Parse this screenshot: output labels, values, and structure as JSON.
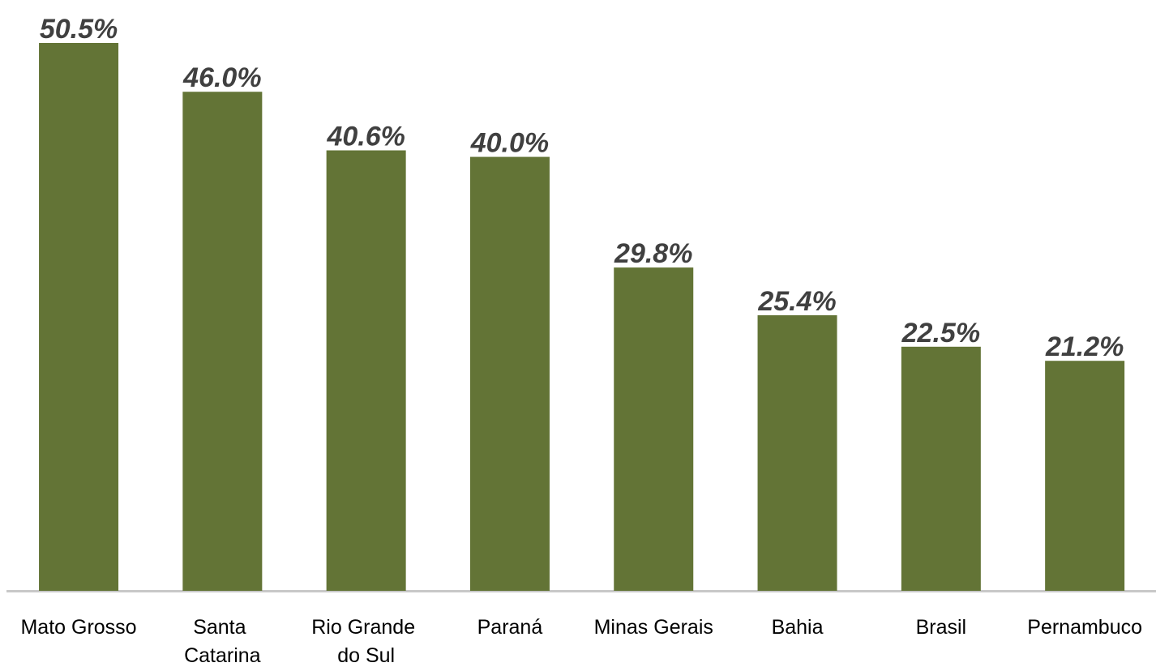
{
  "chart_data": {
    "type": "bar",
    "categories": [
      "Mato Grosso",
      "Santa Catarina",
      "Rio Grande do Sul",
      "Paraná",
      "Minas Gerais",
      "Bahia",
      "Brasil",
      "Pernambuco"
    ],
    "values": [
      50.5,
      46.0,
      40.6,
      40.0,
      29.8,
      25.4,
      22.5,
      21.2
    ],
    "value_labels": [
      "50.5%",
      "46.0%",
      "40.6%",
      "40.0%",
      "29.8%",
      "25.4%",
      "22.5%",
      "21.2%"
    ],
    "color": "#637436"
  }
}
